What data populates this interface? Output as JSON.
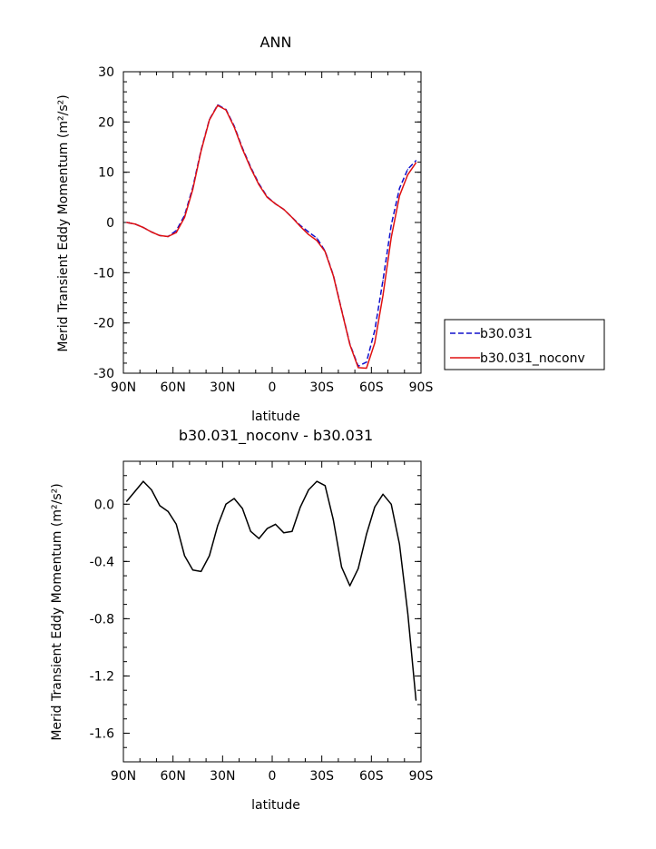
{
  "chart_data": [
    {
      "type": "line",
      "title": "ANN",
      "xlabel": "latitude",
      "ylabel": "Merid Transient Eddy Momentum (m²/s²)",
      "xlim": [
        -90,
        90
      ],
      "ylim": [
        -30,
        30
      ],
      "x_ticks": [
        {
          "value": -90,
          "label": "90N"
        },
        {
          "value": -60,
          "label": "60N"
        },
        {
          "value": -30,
          "label": "30N"
        },
        {
          "value": 0,
          "label": "0"
        },
        {
          "value": 30,
          "label": "30S"
        },
        {
          "value": 60,
          "label": "60S"
        },
        {
          "value": 90,
          "label": "90S"
        }
      ],
      "y_ticks": [
        {
          "value": 30,
          "label": "30"
        },
        {
          "value": 20,
          "label": "20"
        },
        {
          "value": 10,
          "label": "10"
        },
        {
          "value": 0,
          "label": "0"
        },
        {
          "value": -10,
          "label": "-10"
        },
        {
          "value": -20,
          "label": "-20"
        },
        {
          "value": -30,
          "label": "-30"
        }
      ],
      "legend_position": "right",
      "x": [
        -88,
        -83,
        -78,
        -73,
        -68,
        -63,
        -58,
        -53,
        -48,
        -43,
        -38,
        -33,
        -28,
        -23,
        -18,
        -13,
        -8,
        -3,
        2,
        7,
        12,
        17,
        22,
        27,
        32,
        37,
        42,
        47,
        52,
        57,
        62,
        67,
        72,
        77,
        82,
        87
      ],
      "series": [
        {
          "name": "b30.031",
          "color": "#1010cc",
          "dash": "dashed",
          "values": [
            0,
            -0.3,
            -1.0,
            -1.9,
            -2.6,
            -2.8,
            -1.6,
            1.4,
            7.0,
            14.4,
            20.5,
            23.4,
            22.5,
            19.2,
            14.8,
            11.0,
            7.7,
            5.1,
            3.7,
            2.6,
            1.0,
            -0.6,
            -1.9,
            -3.1,
            -5.7,
            -10.5,
            -17.4,
            -24.2,
            -28.6,
            -27.8,
            -21.5,
            -11.5,
            -0.5,
            6.8,
            10.6,
            12.3
          ]
        },
        {
          "name": "b30.031_noconv",
          "color": "#e01010",
          "dash": "solid",
          "values": [
            0,
            -0.3,
            -1.0,
            -1.9,
            -2.6,
            -2.8,
            -2.0,
            1.0,
            6.6,
            14.2,
            20.4,
            23.3,
            22.4,
            19.0,
            14.6,
            10.8,
            7.5,
            5.0,
            3.7,
            2.6,
            1.0,
            -0.8,
            -2.4,
            -3.6,
            -5.8,
            -10.6,
            -17.5,
            -24.3,
            -28.9,
            -29.0,
            -24.0,
            -14.5,
            -3.0,
            5.3,
            9.5,
            11.9
          ]
        }
      ]
    },
    {
      "type": "line",
      "title": "b30.031_noconv - b30.031",
      "xlabel": "latitude",
      "ylabel": "Merid Transient Eddy Momentum (m²/s²)",
      "xlim": [
        -90,
        90
      ],
      "ylim": [
        -1.8,
        0.3
      ],
      "x_ticks": [
        {
          "value": -90,
          "label": "90N"
        },
        {
          "value": -60,
          "label": "60N"
        },
        {
          "value": -30,
          "label": "30N"
        },
        {
          "value": 0,
          "label": "0"
        },
        {
          "value": 30,
          "label": "30S"
        },
        {
          "value": 60,
          "label": "60S"
        },
        {
          "value": 90,
          "label": "90S"
        }
      ],
      "y_ticks": [
        {
          "value": 0.0,
          "label": "0.0"
        },
        {
          "value": -0.4,
          "label": "-0.4"
        },
        {
          "value": -0.8,
          "label": "-0.8"
        },
        {
          "value": -1.2,
          "label": "-1.2"
        },
        {
          "value": -1.6,
          "label": "-1.6"
        }
      ],
      "x": [
        -88,
        -83,
        -78,
        -73,
        -68,
        -63,
        -58,
        -53,
        -48,
        -43,
        -38,
        -33,
        -28,
        -23,
        -18,
        -13,
        -8,
        -3,
        2,
        7,
        12,
        17,
        22,
        27,
        32,
        37,
        42,
        47,
        52,
        57,
        62,
        67,
        72,
        77,
        82,
        87
      ],
      "series": [
        {
          "color": "#000000",
          "values": [
            0.02,
            0.09,
            0.16,
            0.1,
            -0.01,
            -0.05,
            -0.14,
            -0.36,
            -0.46,
            -0.47,
            -0.36,
            -0.15,
            0.0,
            0.04,
            -0.03,
            -0.19,
            -0.24,
            -0.17,
            -0.14,
            -0.2,
            -0.19,
            -0.02,
            0.1,
            0.16,
            0.13,
            -0.11,
            -0.44,
            -0.57,
            -0.45,
            -0.21,
            -0.02,
            0.07,
            0.0,
            -0.28,
            -0.76,
            -1.37
          ]
        }
      ]
    }
  ]
}
